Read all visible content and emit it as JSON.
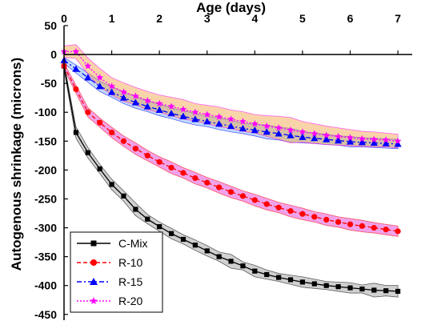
{
  "chart_data": {
    "type": "line",
    "title": "",
    "xlabel": "Age (days)",
    "ylabel": "Autogenous shrinkage (microns)",
    "xlim": [
      0,
      7.3
    ],
    "ylim": [
      -460,
      50
    ],
    "x_ticks": [
      0,
      1,
      2,
      3,
      4,
      5,
      6,
      7
    ],
    "y_ticks": [
      50,
      0,
      -50,
      -100,
      -150,
      -200,
      -250,
      -300,
      -350,
      -400,
      -450
    ],
    "x_axis_position": "top",
    "grid": false,
    "legend_position": "bottom-left",
    "x": [
      0,
      0.25,
      0.5,
      0.75,
      1,
      1.25,
      1.5,
      1.75,
      2,
      2.25,
      2.5,
      2.75,
      3,
      3.25,
      3.5,
      3.75,
      4,
      4.25,
      4.5,
      4.75,
      5,
      5.25,
      5.5,
      5.75,
      6,
      6.25,
      6.5,
      6.75,
      7
    ],
    "series": [
      {
        "name": "C-Mix",
        "color": "#000000",
        "band_color": "#999999",
        "marker": "square",
        "dash": "solid",
        "values": [
          -20,
          -135,
          -170,
          -198,
          -225,
          -245,
          -268,
          -285,
          -298,
          -310,
          -320,
          -330,
          -340,
          -350,
          -358,
          -366,
          -375,
          -381,
          -386,
          -390,
          -394,
          -397,
          -400,
          -402,
          -404,
          -406,
          -408,
          -409,
          -410
        ],
        "band": [
          6,
          10,
          9,
          8,
          9,
          9,
          11,
          8,
          8,
          9,
          8,
          9,
          9,
          8,
          12,
          7,
          10,
          8,
          7,
          8,
          9,
          8,
          7,
          8,
          9,
          7,
          12,
          9,
          10
        ]
      },
      {
        "name": "R-10",
        "color": "#ff0000",
        "band_color": "#e030d0",
        "marker": "circle",
        "dash": "dashed",
        "values": [
          -20,
          -60,
          -100,
          -118,
          -135,
          -150,
          -163,
          -175,
          -186,
          -196,
          -205,
          -214,
          -222,
          -230,
          -238,
          -245,
          -252,
          -259,
          -265,
          -271,
          -276,
          -281,
          -286,
          -290,
          -294,
          -297,
          -300,
          -303,
          -306
        ],
        "band": [
          5,
          7,
          8,
          8,
          9,
          9,
          10,
          9,
          9,
          10,
          9,
          10,
          9,
          10,
          10,
          9,
          10,
          10,
          9,
          10,
          10,
          9,
          10,
          9,
          10,
          10,
          9,
          9,
          9
        ]
      },
      {
        "name": "R-15",
        "color": "#0000ff",
        "band_color": "#70b0f0",
        "marker": "triangle",
        "dash": "dashdot",
        "values": [
          -10,
          -25,
          -40,
          -55,
          -65,
          -75,
          -83,
          -90,
          -96,
          -102,
          -107,
          -112,
          -116,
          -120,
          -124,
          -128,
          -131,
          -134,
          -137,
          -140,
          -143,
          -145,
          -147,
          -149,
          -151,
          -152,
          -153,
          -154,
          -155
        ],
        "band": [
          5,
          7,
          8,
          9,
          9,
          10,
          10,
          9,
          10,
          9,
          10,
          10,
          9,
          10,
          10,
          9,
          10,
          12,
          11,
          12,
          10,
          9,
          9,
          8,
          9,
          8,
          8,
          8,
          8
        ]
      },
      {
        "name": "R-20",
        "color": "#ff00ff",
        "band_color": "#f5a040",
        "marker": "star",
        "dash": "dotted",
        "values": [
          5,
          5,
          -20,
          -40,
          -55,
          -65,
          -72,
          -80,
          -85,
          -90,
          -95,
          -100,
          -104,
          -108,
          -112,
          -116,
          -120,
          -124,
          -127,
          -131,
          -134,
          -137,
          -140,
          -142,
          -144,
          -146,
          -147,
          -148,
          -150
        ],
        "band": [
          10,
          12,
          14,
          16,
          15,
          16,
          15,
          16,
          15,
          16,
          17,
          15,
          16,
          17,
          16,
          17,
          16,
          18,
          20,
          22,
          18,
          17,
          16,
          15,
          14,
          13,
          13,
          12,
          12
        ]
      }
    ]
  }
}
